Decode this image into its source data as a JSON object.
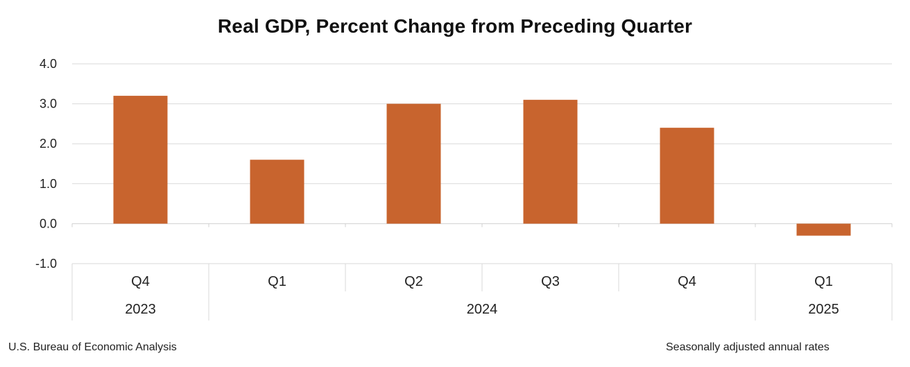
{
  "chart_data": {
    "type": "bar",
    "title": "Real GDP, Percent Change from Preceding Quarter",
    "xlabel": "",
    "ylabel": "",
    "ylim": [
      -1.0,
      4.0
    ],
    "yticks": [
      "4.0",
      "3.0",
      "2.0",
      "1.0",
      "0.0",
      "-1.0"
    ],
    "ytick_values": [
      4.0,
      3.0,
      2.0,
      1.0,
      0.0,
      -1.0
    ],
    "categories": [
      "Q4",
      "Q1",
      "Q2",
      "Q3",
      "Q4",
      "Q1"
    ],
    "years": [
      {
        "label": "2023",
        "quarters": 1
      },
      {
        "label": "2024",
        "quarters": 4
      },
      {
        "label": "2025",
        "quarters": 1
      }
    ],
    "values": [
      3.2,
      1.6,
      3.0,
      3.1,
      2.4,
      -0.3
    ],
    "bar_color": "#c8642e",
    "grid": true,
    "legend": "none"
  },
  "footer": {
    "source": "U.S. Bureau of Economic Analysis",
    "note": "Seasonally adjusted annual rates"
  }
}
